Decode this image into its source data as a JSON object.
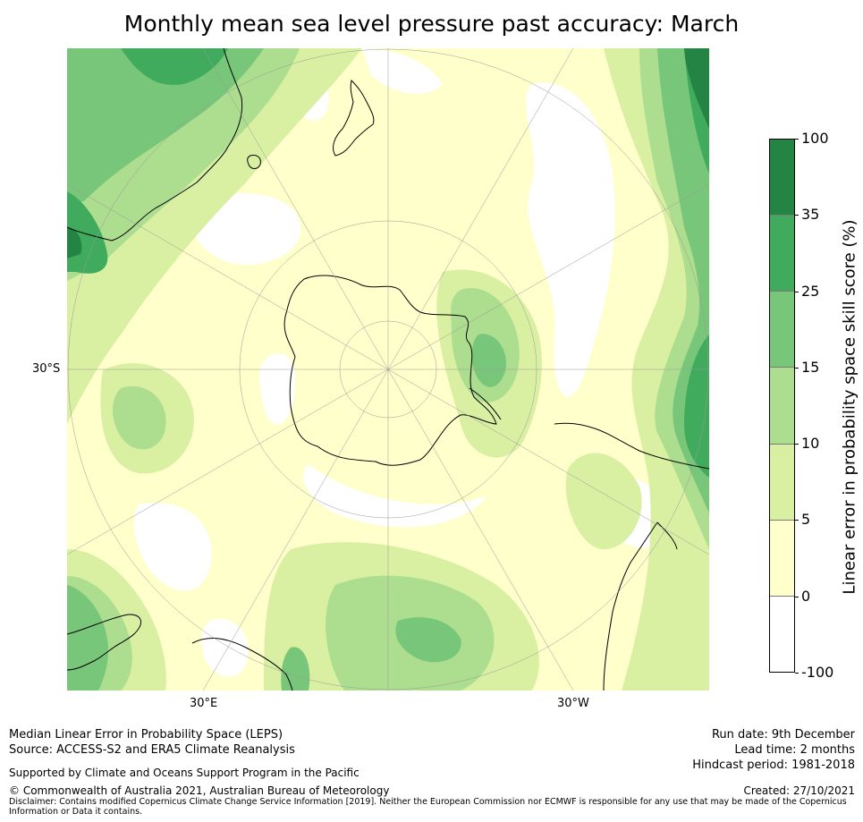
{
  "title": "Monthly mean sea level pressure past accuracy: March",
  "map": {
    "projection": "south polar stereographic",
    "latitude_label": "30°S",
    "longitude_labels": [
      "30°E",
      "30°W"
    ],
    "landmask_color": "#000000"
  },
  "colorbar": {
    "title": "Linear error in probability space skill score (%)",
    "ticks": [
      "100",
      "35",
      "25",
      "15",
      "10",
      "5",
      "0",
      "-100"
    ],
    "bins": [
      {
        "range": "35 to 100",
        "color": "#238443"
      },
      {
        "range": "25 to 35",
        "color": "#41ab5d"
      },
      {
        "range": "15 to 25",
        "color": "#78c679"
      },
      {
        "range": "10 to 15",
        "color": "#addd8e"
      },
      {
        "range": "5 to 10",
        "color": "#d9f0a3"
      },
      {
        "range": "0 to 5",
        "color": "#ffffcc"
      },
      {
        "range": "-100 to 0",
        "color": "#ffffff"
      }
    ]
  },
  "footer": {
    "line1": "Median Linear Error in Probability Space (LEPS)",
    "line2": "Source: ACCESS-S2 and ERA5 Climate Reanalysis",
    "support": "Supported by Climate and Oceans Support Program in the Pacific",
    "copyright": "© Commonwealth of Australia 2021, Australian Bureau of Meteorology",
    "disclaimer": "Disclaimer: Contains modified Copernicus Climate Change Service Information [2019]. Neither the European Commission nor ECMWF is responsible for any use that may be made of the Copernicus Information or Data it contains.",
    "run_date": "Run date: 9th December",
    "lead_time": "Lead time: 2 months",
    "hindcast": "Hindcast period: 1981-2018",
    "created": "Created: 27/10/2021"
  }
}
